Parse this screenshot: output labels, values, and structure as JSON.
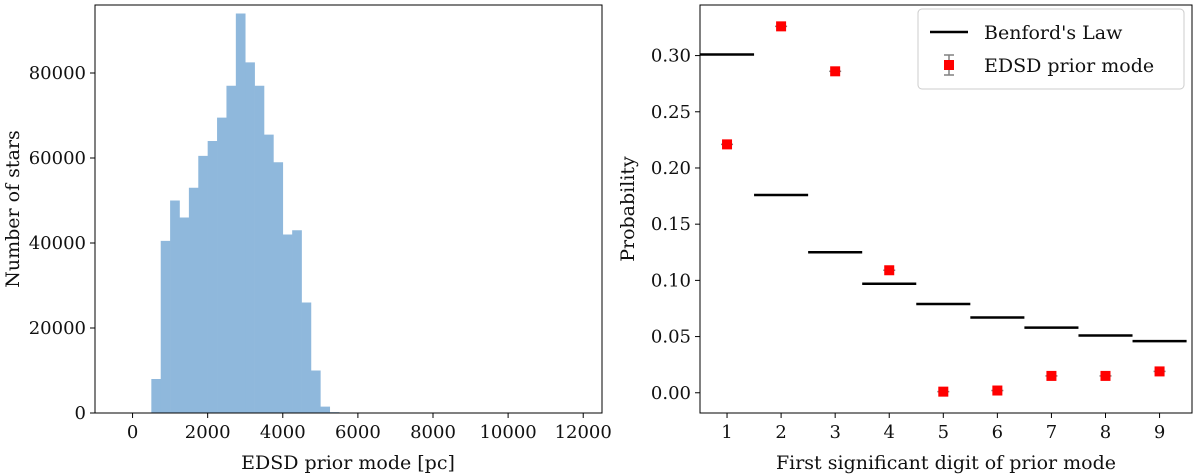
{
  "chart_data": [
    {
      "type": "bar",
      "subtype": "histogram",
      "xlabel": "EDSD prior mode [pc]",
      "ylabel": "Number of stars",
      "xlim": [
        -1000,
        12500
      ],
      "ylim": [
        0,
        96000
      ],
      "xticks": [
        0,
        2000,
        4000,
        6000,
        8000,
        10000,
        12000
      ],
      "yticks": [
        0,
        20000,
        40000,
        60000,
        80000
      ],
      "color": "#8fb8dc",
      "grid": false,
      "bins": [
        {
          "x0": 500,
          "x1": 750,
          "value": 8000
        },
        {
          "x0": 750,
          "x1": 1000,
          "value": 40500
        },
        {
          "x0": 1000,
          "x1": 1250,
          "value": 50000
        },
        {
          "x0": 1250,
          "x1": 1500,
          "value": 46000
        },
        {
          "x0": 1500,
          "x1": 1750,
          "value": 53000
        },
        {
          "x0": 1750,
          "x1": 2000,
          "value": 60500
        },
        {
          "x0": 2000,
          "x1": 2250,
          "value": 64000
        },
        {
          "x0": 2250,
          "x1": 2500,
          "value": 69500
        },
        {
          "x0": 2500,
          "x1": 2750,
          "value": 77000
        },
        {
          "x0": 2750,
          "x1": 3000,
          "value": 94000
        },
        {
          "x0": 3000,
          "x1": 3250,
          "value": 82500
        },
        {
          "x0": 3250,
          "x1": 3500,
          "value": 77000
        },
        {
          "x0": 3500,
          "x1": 3750,
          "value": 65500
        },
        {
          "x0": 3750,
          "x1": 4000,
          "value": 59000
        },
        {
          "x0": 4000,
          "x1": 4250,
          "value": 42000
        },
        {
          "x0": 4250,
          "x1": 4500,
          "value": 43000
        },
        {
          "x0": 4500,
          "x1": 4750,
          "value": 26000
        },
        {
          "x0": 4750,
          "x1": 5000,
          "value": 10000
        },
        {
          "x0": 5000,
          "x1": 5250,
          "value": 1500
        },
        {
          "x0": 5250,
          "x1": 5500,
          "value": 200
        }
      ]
    },
    {
      "type": "scatter",
      "xlabel": "First significant digit of prior mode",
      "ylabel": "Probability",
      "xlim": [
        0.5,
        9.6
      ],
      "ylim": [
        -0.018,
        0.345
      ],
      "xticks": [
        1,
        2,
        3,
        4,
        5,
        6,
        7,
        8,
        9
      ],
      "yticks": [
        0.0,
        0.05,
        0.1,
        0.15,
        0.2,
        0.25,
        0.3
      ],
      "ytick_labels": [
        "0.00",
        "0.05",
        "0.10",
        "0.15",
        "0.20",
        "0.25",
        "0.30"
      ],
      "grid": false,
      "legend_position": "top-right",
      "series": [
        {
          "name": "Benford's Law",
          "kind": "step-segments",
          "color": "#000000",
          "x": [
            1,
            2,
            3,
            4,
            5,
            6,
            7,
            8,
            9
          ],
          "values": [
            0.301,
            0.176,
            0.125,
            0.097,
            0.079,
            0.067,
            0.058,
            0.051,
            0.046
          ]
        },
        {
          "name": "EDSD prior mode",
          "kind": "errorbar-squares",
          "color": "#ff0000",
          "errorbar_color": "#808080",
          "x": [
            1,
            2,
            3,
            4,
            5,
            6,
            7,
            8,
            9
          ],
          "values": [
            0.221,
            0.326,
            0.286,
            0.109,
            0.001,
            0.002,
            0.015,
            0.015,
            0.019
          ]
        }
      ]
    }
  ]
}
